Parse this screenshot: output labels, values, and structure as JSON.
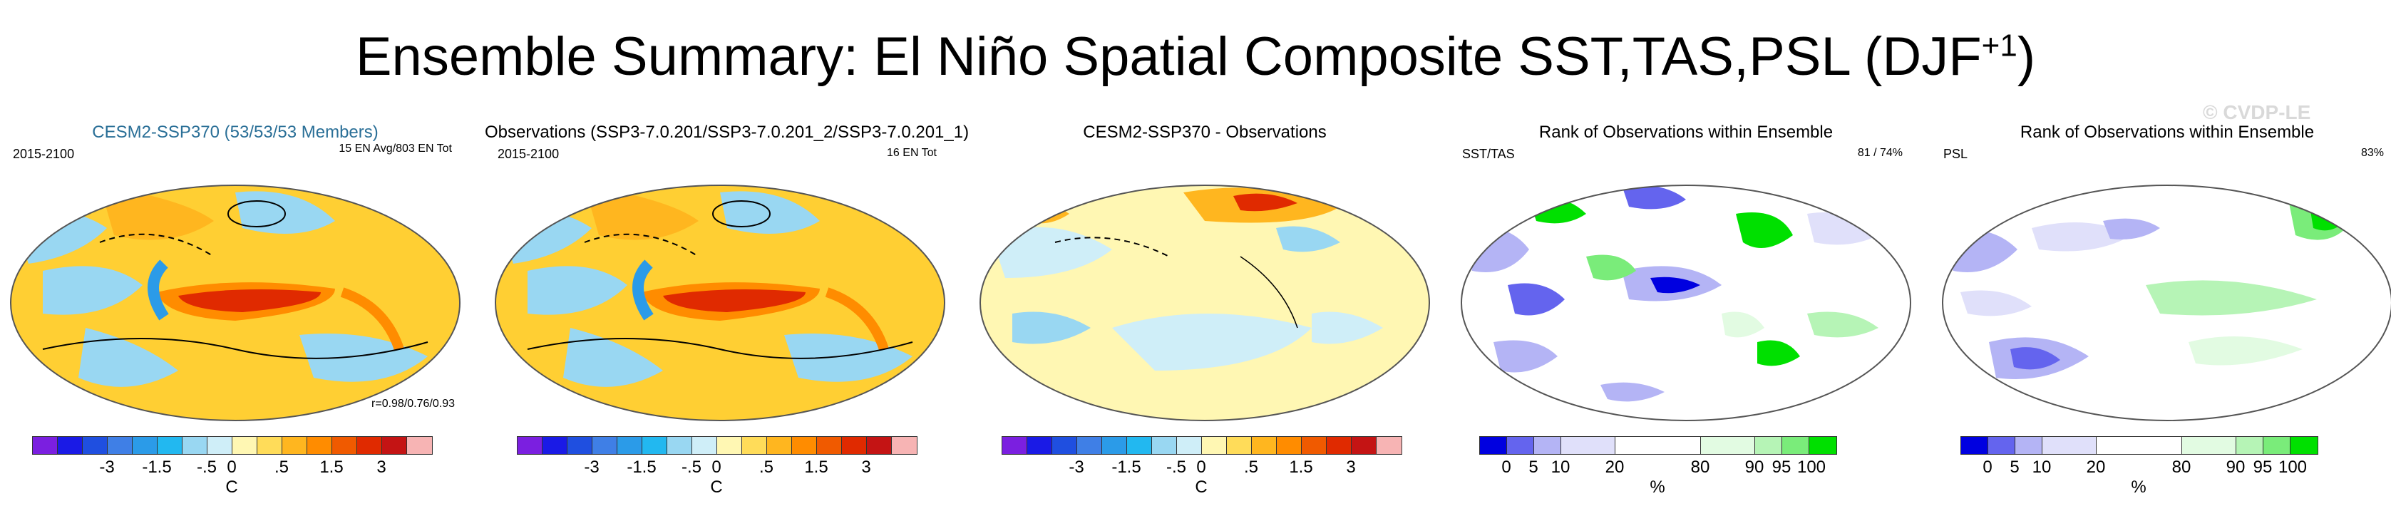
{
  "title_main": "Ensemble Summary: El Niño Spatial Composite SST,TAS,PSL (DJF",
  "title_sup": "+1",
  "title_end": ")",
  "watermark": "© CVDP-LE",
  "colors": {
    "anomaly_bar": [
      "#7b1fe0",
      "#1a1ae6",
      "#1f4fe0",
      "#3f7fe6",
      "#2b9be8",
      "#22b8f0",
      "#99d7f2",
      "#cfeef8",
      "#fff7b3",
      "#ffdc59",
      "#ffb61f",
      "#ff8c00",
      "#f05a00",
      "#e02a00",
      "#c41414",
      "#f7b4b4"
    ],
    "rank_bar": [
      "#0000e0",
      "#6464ee",
      "#b4b4f5",
      "#e0e0fa",
      "#ffffff",
      "#e2fbe2",
      "#b6f4b6",
      "#7aec7a",
      "#00e000"
    ]
  },
  "panels": [
    {
      "title": "CESM2-SSP370 (53/53/53 Members)",
      "left_label": "2015-2100",
      "right_label": "15 EN Avg/803 EN Tot",
      "stat_label": "r=0.98/0.76/0.93",
      "colorbar": "anomaly",
      "unit": "C",
      "ticks": [
        "-3",
        "-1.5",
        "-.5",
        "0",
        ".5",
        "1.5",
        "3"
      ]
    },
    {
      "title": "Observations (SSP3-7.0.201/SSP3-7.0.201_2/SSP3-7.0.201_1)",
      "left_label": "2015-2100",
      "right_label": "16 EN Tot",
      "colorbar": "anomaly",
      "unit": "C",
      "ticks": [
        "-3",
        "-1.5",
        "-.5",
        "0",
        ".5",
        "1.5",
        "3"
      ]
    },
    {
      "title": "CESM2-SSP370 - Observations",
      "colorbar": "anomaly",
      "unit": "C",
      "ticks": [
        "-3",
        "-1.5",
        "-.5",
        "0",
        ".5",
        "1.5",
        "3"
      ]
    },
    {
      "title": "Rank of Observations within Ensemble",
      "left_label": "SST/TAS",
      "right_label": "81 / 74%",
      "colorbar": "rank",
      "unit": "%",
      "ticks": [
        "0",
        "5",
        "10",
        "20",
        "80",
        "90",
        "95",
        "100"
      ]
    },
    {
      "title": "Rank of Observations within Ensemble",
      "left_label": "PSL",
      "right_label": "83%",
      "colorbar": "rank",
      "unit": "%",
      "ticks": [
        "0",
        "5",
        "10",
        "20",
        "80",
        "90",
        "95",
        "100"
      ]
    }
  ],
  "chart_data": [
    {
      "type": "heatmap",
      "title": "CESM2-SSP370 (53/53/53 Members)",
      "period": "2015-2100",
      "annotation": "15 EN Avg/803 EN Tot",
      "pattern_correlation": "r=0.98/0.76/0.93",
      "colorbar_ticks": [
        -3,
        -1.5,
        -0.5,
        0,
        0.5,
        1.5,
        3
      ],
      "units": "C"
    },
    {
      "type": "heatmap",
      "title": "Observations (SSP3-7.0.201/SSP3-7.0.201_2/SSP3-7.0.201_1)",
      "period": "2015-2100",
      "annotation": "16 EN Tot",
      "colorbar_ticks": [
        -3,
        -1.5,
        -0.5,
        0,
        0.5,
        1.5,
        3
      ],
      "units": "C"
    },
    {
      "type": "heatmap",
      "title": "CESM2-SSP370 - Observations",
      "colorbar_ticks": [
        -3,
        -1.5,
        -0.5,
        0,
        0.5,
        1.5,
        3
      ],
      "units": "C"
    },
    {
      "type": "heatmap",
      "title": "Rank of Observations within Ensemble",
      "variable": "SST/TAS",
      "annotation": "81 / 74%",
      "colorbar_ticks": [
        0,
        5,
        10,
        20,
        80,
        90,
        95,
        100
      ],
      "units": "%"
    },
    {
      "type": "heatmap",
      "title": "Rank of Observations within Ensemble",
      "variable": "PSL",
      "annotation": "83%",
      "colorbar_ticks": [
        0,
        5,
        10,
        20,
        80,
        90,
        95,
        100
      ],
      "units": "%"
    }
  ]
}
